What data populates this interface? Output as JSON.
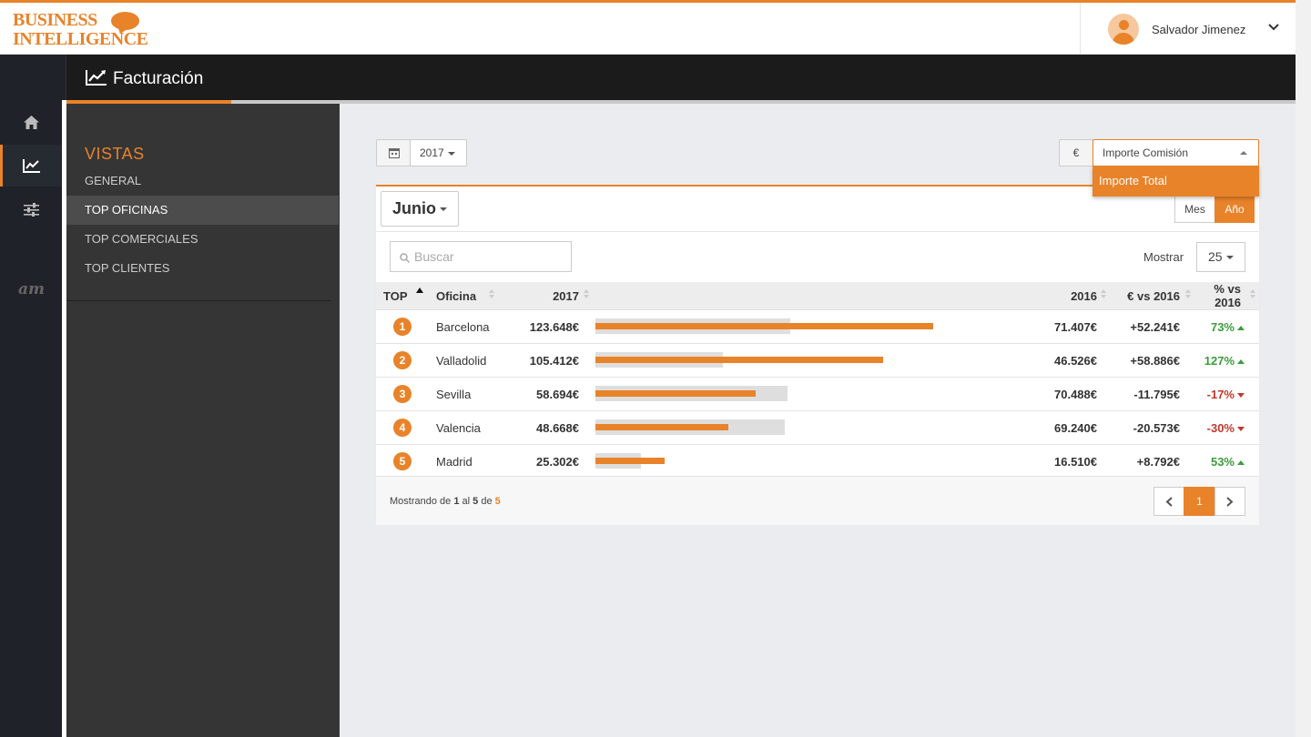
{
  "app": {
    "logo_line1": "BUSINESS",
    "logo_line2": "INTELLIGENCE",
    "page_title": "Facturación"
  },
  "user": {
    "name": "Salvador Jimenez"
  },
  "sidebar": {
    "section": "VISTAS",
    "items": [
      {
        "label": "GENERAL",
        "active": false
      },
      {
        "label": "TOP OFICINAS",
        "active": true
      },
      {
        "label": "TOP COMERCIALES",
        "active": false
      },
      {
        "label": "TOP CLIENTES",
        "active": false
      }
    ],
    "brand_mark": "am"
  },
  "filters": {
    "year": "2017",
    "currency_symbol": "€",
    "metric_selected": "Importe Comisión",
    "metric_option": "Importe Total"
  },
  "card": {
    "month": "Junio",
    "toggle_mes": "Mes",
    "toggle_ano": "Año",
    "search_placeholder": "Buscar",
    "show_label": "Mostrar",
    "show_value": "25"
  },
  "table": {
    "headers": {
      "top": "TOP",
      "oficina": "Oficina",
      "y2017": "2017",
      "y2016": "2016",
      "diff": "€ vs 2016",
      "pct": "% vs 2016"
    },
    "rows": [
      {
        "rank": "1",
        "office": "Barcelona",
        "v2017": "123.648€",
        "v2016": "71.407€",
        "diff": "+52.241€",
        "pct": "73%",
        "trend": "up",
        "n2017": 123648,
        "n2016": 71407
      },
      {
        "rank": "2",
        "office": "Valladolid",
        "v2017": "105.412€",
        "v2016": "46.526€",
        "diff": "+58.886€",
        "pct": "127%",
        "trend": "up",
        "n2017": 105412,
        "n2016": 46526
      },
      {
        "rank": "3",
        "office": "Sevilla",
        "v2017": "58.694€",
        "v2016": "70.488€",
        "diff": "-11.795€",
        "pct": "-17%",
        "trend": "down",
        "n2017": 58694,
        "n2016": 70488
      },
      {
        "rank": "4",
        "office": "Valencia",
        "v2017": "48.668€",
        "v2016": "69.240€",
        "diff": "-20.573€",
        "pct": "-30%",
        "trend": "down",
        "n2017": 48668,
        "n2016": 69240
      },
      {
        "rank": "5",
        "office": "Madrid",
        "v2017": "25.302€",
        "v2016": "16.510€",
        "diff": "+8.792€",
        "pct": "53%",
        "trend": "up",
        "n2017": 25302,
        "n2016": 16510
      }
    ]
  },
  "footer": {
    "prefix": "Mostrando de",
    "from": "1",
    "al": "al",
    "to": "5",
    "de": "de",
    "total": "5",
    "page": "1"
  },
  "colors": {
    "accent": "#e8832a",
    "positive": "#3b9c3b",
    "negative": "#c0392b"
  }
}
